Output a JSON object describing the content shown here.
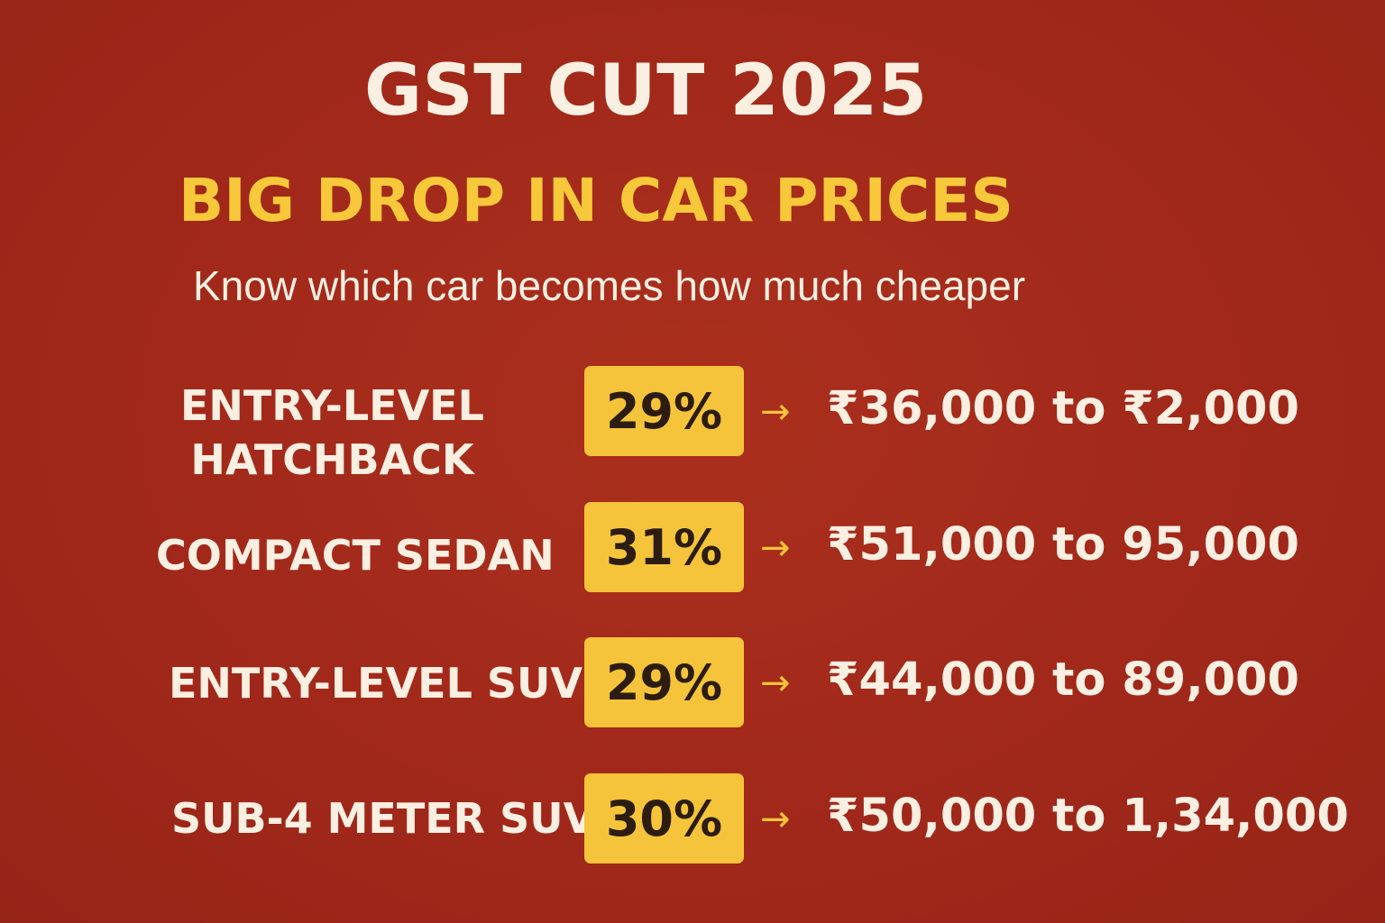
{
  "header": {
    "title": "GST CUT 2025",
    "subtitle": "BIG DROP IN CAR PRICES",
    "tagline": "Know which car becomes how much cheaper"
  },
  "rows": [
    {
      "category": "ENTRY-LEVEL HATCHBACK",
      "category_line1": "ENTRY-LEVEL",
      "category_line2": "HATCHBACK",
      "percent": "29%",
      "arrow": "→",
      "range": "₹36,000 to ₹2,000"
    },
    {
      "category": "COMPACT SEDAN",
      "percent": "31%",
      "arrow": "→",
      "range": "₹51,000 to 95,000"
    },
    {
      "category": "ENTRY-LEVEL SUV",
      "percent": "29%",
      "arrow": "→",
      "range": "₹44,000 to 89,000"
    },
    {
      "category": "SUB-4 METER SUV",
      "percent": "30%",
      "arrow": "→",
      "range": "₹50,000 to 1,34,000"
    }
  ],
  "colors": {
    "background": "#a32a1b",
    "title": "#fbefe1",
    "subtitle": "#f7c93a",
    "badge": "#f5c43a",
    "badge_text": "#2c1d10",
    "arrow": "#f5c43a"
  }
}
